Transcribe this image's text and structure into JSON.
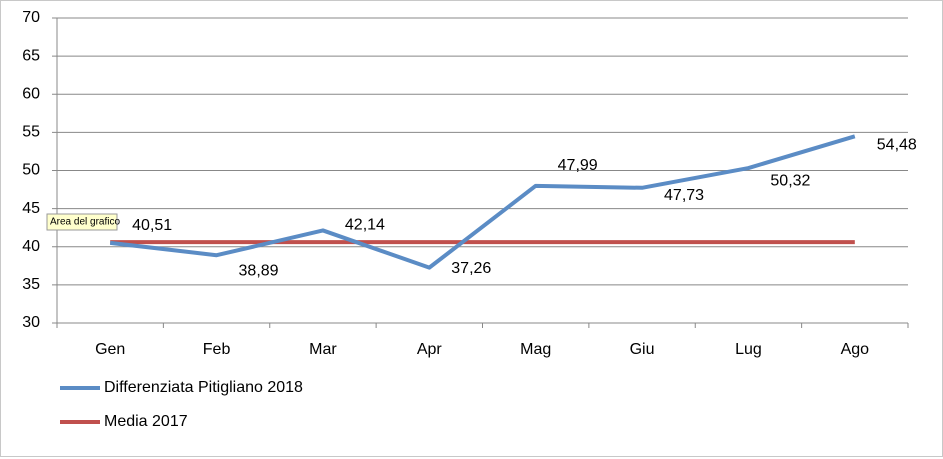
{
  "chart_data": {
    "type": "line",
    "categories": [
      "Gen",
      "Feb",
      "Mar",
      "Apr",
      "Mag",
      "Giu",
      "Lug",
      "Ago"
    ],
    "series": [
      {
        "name": "Differenziata Pitigliano 2018",
        "color": "#5b8cc5",
        "values": [
          40.51,
          38.89,
          42.14,
          37.26,
          47.99,
          47.73,
          50.32,
          54.48
        ],
        "value_labels": [
          "40,51",
          "38,89",
          "42,14",
          "37,26",
          "47,99",
          "47,73",
          "50,32",
          "54,48"
        ]
      },
      {
        "name": "Media 2017",
        "color": "#c0504d",
        "values": [
          40.6,
          40.6,
          40.6,
          40.6,
          40.6,
          40.6,
          40.6,
          40.6
        ]
      }
    ],
    "ylim": [
      30,
      70
    ],
    "yticks": [
      30,
      35,
      40,
      45,
      50,
      55,
      60,
      65,
      70
    ],
    "grid": true,
    "legend": "bottom-left",
    "tooltip": "Area del grafico"
  }
}
